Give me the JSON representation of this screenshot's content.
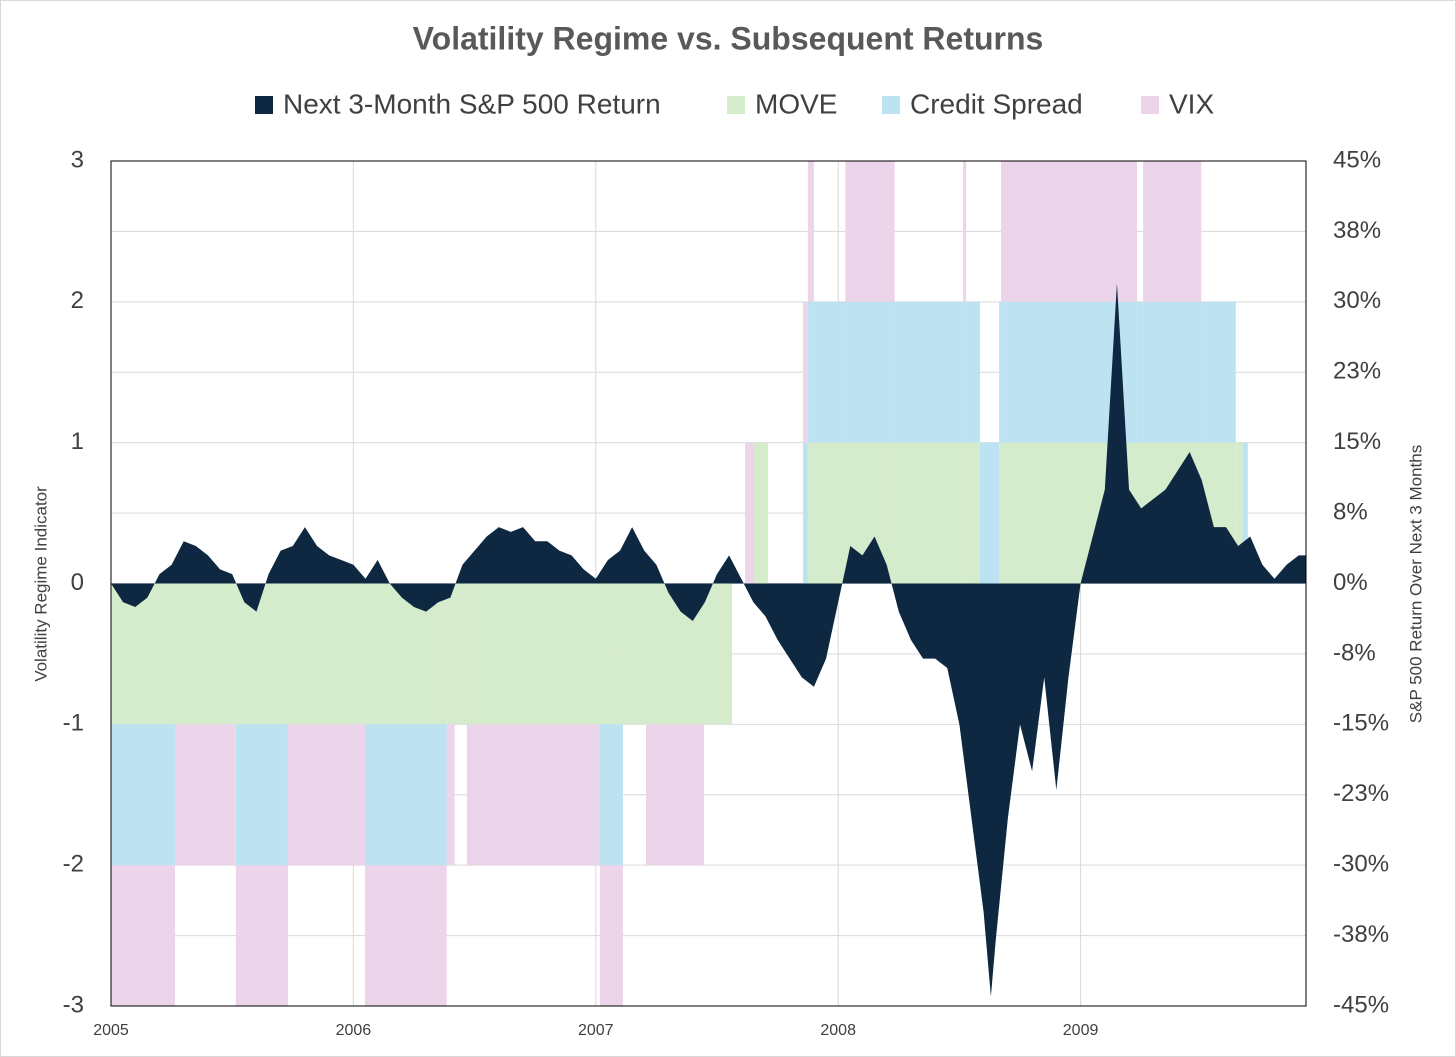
{
  "chart_data": {
    "type": "combo",
    "title": "Volatility Regime vs. Subsequent Returns",
    "ylabel": "Volatility Regime Indicator",
    "y2label": "S&P 500 Return Over Next 3 Months",
    "xlim": [
      2005,
      2009.93
    ],
    "xticks": [
      2005,
      2006,
      2007,
      2008,
      2009
    ],
    "ylim": [
      -3,
      3
    ],
    "yticks": [
      -3,
      -2,
      -1,
      0,
      1,
      2,
      3
    ],
    "y2lim": [
      -45,
      45
    ],
    "y2ticks": [
      {
        "value": 45,
        "label": "45%"
      },
      {
        "value": 37.5,
        "label": "38%"
      },
      {
        "value": 30,
        "label": "30%"
      },
      {
        "value": 22.5,
        "label": "23%"
      },
      {
        "value": 15,
        "label": "15%"
      },
      {
        "value": 7.5,
        "label": "8%"
      },
      {
        "value": 0,
        "label": "0%"
      },
      {
        "value": -7.5,
        "label": "-8%"
      },
      {
        "value": -15,
        "label": "-15%"
      },
      {
        "value": -22.5,
        "label": "-23%"
      },
      {
        "value": -30,
        "label": "-30%"
      },
      {
        "value": -37.5,
        "label": "-38%"
      },
      {
        "value": -45,
        "label": "-45%"
      }
    ],
    "grid": true,
    "x": [
      2005.0,
      2005.264,
      2005.515,
      2005.73,
      2006.048,
      2006.385,
      2006.418,
      2006.468,
      2007.017,
      2007.112,
      2007.207,
      2007.446,
      2007.562,
      2007.616,
      2007.653,
      2007.71,
      2007.855,
      2007.875,
      2007.9,
      2008.03,
      2008.233,
      2008.515,
      2008.528,
      2008.585,
      2008.664,
      2008.672,
      2009.233,
      2009.258,
      2009.498,
      2009.64,
      2009.669,
      2009.69
    ],
    "series": [
      {
        "name": "Next 3-Month S&P 500 Return",
        "color": "#0e2841",
        "type": "area",
        "axis": "y2",
        "x": [
          2005.0,
          2005.05,
          2005.1,
          2005.15,
          2005.2,
          2005.25,
          2005.3,
          2005.35,
          2005.4,
          2005.45,
          2005.5,
          2005.55,
          2005.6,
          2005.65,
          2005.7,
          2005.75,
          2005.8,
          2005.85,
          2005.9,
          2005.95,
          2006.0,
          2006.05,
          2006.1,
          2006.15,
          2006.2,
          2006.25,
          2006.3,
          2006.35,
          2006.4,
          2006.45,
          2006.5,
          2006.55,
          2006.6,
          2006.65,
          2006.7,
          2006.75,
          2006.8,
          2006.85,
          2006.9,
          2006.95,
          2007.0,
          2007.05,
          2007.1,
          2007.15,
          2007.2,
          2007.25,
          2007.3,
          2007.35,
          2007.4,
          2007.45,
          2007.5,
          2007.55,
          2007.6,
          2007.65,
          2007.7,
          2007.75,
          2007.8,
          2007.85,
          2007.9,
          2007.95,
          2008.0,
          2008.05,
          2008.1,
          2008.15,
          2008.2,
          2008.25,
          2008.3,
          2008.35,
          2008.4,
          2008.45,
          2008.5,
          2008.55,
          2008.6,
          2008.63,
          2008.65,
          2008.7,
          2008.75,
          2008.8,
          2008.85,
          2008.9,
          2008.95,
          2009.0,
          2009.05,
          2009.1,
          2009.15,
          2009.2,
          2009.25,
          2009.3,
          2009.35,
          2009.4,
          2009.45,
          2009.5,
          2009.55,
          2009.6,
          2009.65,
          2009.7,
          2009.75,
          2009.8,
          2009.85,
          2009.9,
          2009.93
        ],
        "values": [
          0,
          -2,
          -2.5,
          -1.5,
          1,
          2,
          4.5,
          4,
          3,
          1.5,
          1,
          -2,
          -3,
          1,
          3.5,
          4,
          6,
          4,
          3,
          2.5,
          2,
          0.5,
          2.5,
          0,
          -1.5,
          -2.5,
          -3,
          -2,
          -1.5,
          2,
          3.5,
          5,
          6,
          5.5,
          6,
          4.5,
          4.5,
          3.5,
          3,
          1.5,
          0.5,
          2.5,
          3.5,
          6,
          3.5,
          2,
          -1,
          -3,
          -4,
          -2,
          1,
          3,
          0.5,
          -2,
          -3.5,
          -6,
          -8,
          -10,
          -11,
          -8,
          -2,
          4,
          3,
          5,
          2,
          -3,
          -6,
          -8,
          -8,
          -9,
          -15,
          -25,
          -35,
          -44,
          -38,
          -25,
          -15,
          -20,
          -10,
          -22,
          -10,
          0,
          5,
          10,
          32,
          10,
          8,
          9,
          10,
          12,
          14,
          11,
          6,
          6,
          4,
          5,
          2,
          0.5,
          2,
          3,
          3
        ]
      },
      {
        "name": "MOVE",
        "color": "#d4ebcc",
        "type": "step",
        "values": [
          -1,
          -1,
          -1,
          -1,
          -1,
          -1,
          -1,
          -1,
          -1,
          -1,
          -1,
          -1,
          0,
          0,
          1,
          0,
          0,
          1,
          1,
          1,
          1,
          1,
          1,
          0,
          1,
          1,
          1,
          1,
          1,
          1,
          0,
          0
        ]
      },
      {
        "name": "Credit Spread",
        "color": "#bde3f2",
        "type": "step",
        "values": [
          -1,
          0,
          -1,
          0,
          -1,
          0,
          0,
          0,
          -1,
          0,
          0,
          0,
          0,
          0,
          0,
          0,
          1,
          1,
          1,
          1,
          1,
          1,
          1,
          1,
          1,
          1,
          1,
          1,
          1,
          0,
          1,
          0
        ]
      },
      {
        "name": "VIX",
        "color": "#ecd5ea",
        "type": "step",
        "values": [
          -1,
          -1,
          -1,
          -1,
          -1,
          -1,
          0,
          -1,
          -1,
          0,
          -1,
          0,
          0,
          1,
          0,
          0,
          1,
          1,
          0,
          1,
          0,
          1,
          0,
          0,
          0,
          1,
          0,
          1,
          0,
          0,
          0,
          0
        ]
      }
    ]
  }
}
